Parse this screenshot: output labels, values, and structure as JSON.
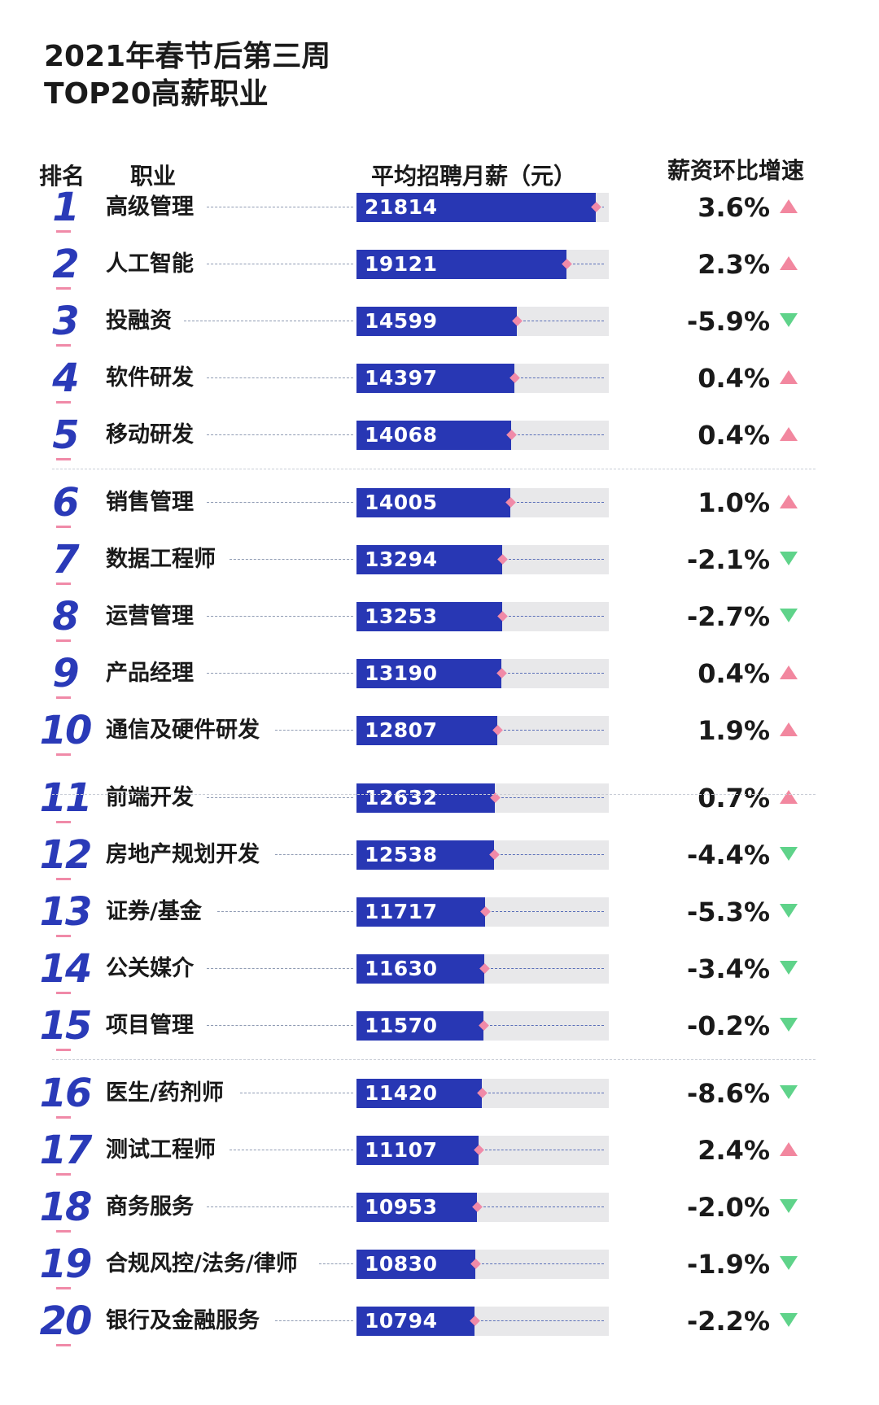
{
  "title_line1": "2021年春节后第三周",
  "title_line2": "TOP20高薪职业",
  "headers": {
    "rank": "排名",
    "job": "职业",
    "salary": "平均招聘月薪（元）",
    "growth": "薪资环比增速"
  },
  "colors": {
    "bar": "#2837b4",
    "rank": "#2a3ab8",
    "up": "#f2879f",
    "down": "#5fd38a"
  },
  "chart_data": {
    "type": "bar",
    "orientation": "horizontal",
    "xlim": [
      0,
      23000
    ],
    "categories": [
      "高级管理",
      "人工智能",
      "投融资",
      "软件研发",
      "移动研发",
      "销售管理",
      "数据工程师",
      "运营管理",
      "产品经理",
      "通信及硬件研发",
      "前端开发",
      "房地产规划开发",
      "证券/基金",
      "公关媒介",
      "项目管理",
      "医生/药剂师",
      "测试工程师",
      "商务服务",
      "合规风控/法务/律师",
      "银行及金融服务"
    ],
    "values": [
      21814,
      19121,
      14599,
      14397,
      14068,
      14005,
      13294,
      13253,
      13190,
      12807,
      12632,
      12538,
      11717,
      11630,
      11570,
      11420,
      11107,
      10953,
      10830,
      10794
    ],
    "growth": [
      "3.6%",
      "2.3%",
      "-5.9%",
      "0.4%",
      "0.4%",
      "1.0%",
      "-2.1%",
      "-2.7%",
      "0.4%",
      "1.9%",
      "0.7%",
      "-4.4%",
      "-5.3%",
      "-3.4%",
      "-0.2%",
      "-8.6%",
      "2.4%",
      "-2.0%",
      "-1.9%",
      "-2.2%"
    ],
    "trend": [
      "up",
      "up",
      "down",
      "up",
      "up",
      "up",
      "down",
      "down",
      "up",
      "up",
      "up",
      "down",
      "down",
      "down",
      "down",
      "down",
      "up",
      "down",
      "down",
      "down"
    ]
  }
}
